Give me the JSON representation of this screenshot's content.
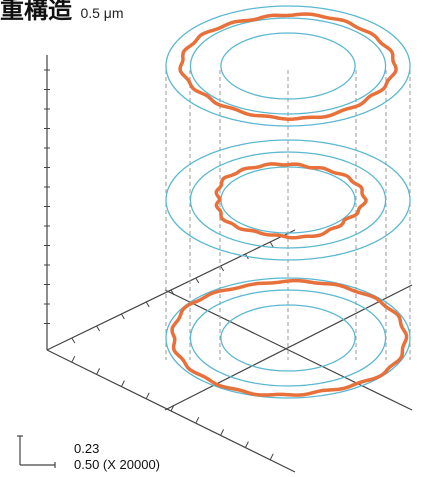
{
  "header": {
    "title": "重構造",
    "subtitle": "0.5 μm"
  },
  "scale_bar": {
    "vertical_value": "0.23",
    "horizontal_value": "0.50 (X 20000)"
  },
  "colors": {
    "guide_ring": "#5bb8d0",
    "profile": "#e8703a",
    "axis": "#444444",
    "dashed": "#999999"
  },
  "levels": [
    {
      "name": "top",
      "guide_ring_radii": [
        0.55,
        0.8,
        1.0
      ],
      "profile_radius": 0.86,
      "profile_noise": [
        0.02,
        -0.01,
        0.03,
        0.0,
        -0.02,
        0.02,
        0.01,
        -0.03,
        0.02,
        0.0
      ]
    },
    {
      "name": "middle",
      "guide_ring_radii": [
        0.55,
        0.8,
        1.0
      ],
      "profile_radius": 0.6,
      "profile_noise": [
        0.03,
        -0.02,
        0.04,
        -0.01,
        0.02,
        -0.03,
        0.03,
        0.01,
        -0.02,
        0.02
      ]
    },
    {
      "name": "bottom",
      "guide_ring_radii": [
        0.55,
        0.8,
        1.0
      ],
      "profile_radius": 0.95,
      "profile_noise": [
        0.01,
        0.03,
        -0.02,
        0.02,
        0.0,
        -0.01,
        0.03,
        -0.02,
        0.01,
        0.02
      ]
    }
  ]
}
